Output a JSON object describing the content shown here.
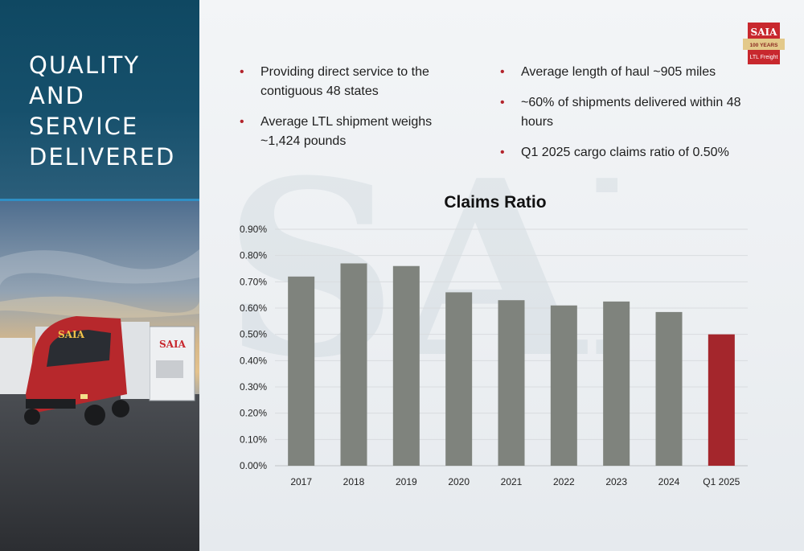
{
  "slide": {
    "title": "QUALITY\nAND\nSERVICE\nDELIVERED"
  },
  "logo": {
    "brand": "SAIA",
    "tagline_top": "100 YEARS",
    "tagline_bottom": "LTL Freight",
    "truck_brand": "SAIA",
    "brand_color": "#c8282e"
  },
  "bullets": {
    "left": [
      "Providing direct service to the contiguous 48 states",
      "Average LTL shipment weighs ~1,424 pounds"
    ],
    "right": [
      "Average length of haul ~905 miles",
      "~60% of shipments delivered within 48 hours",
      "Q1 2025 cargo claims ratio of 0.50%"
    ]
  },
  "colors": {
    "bar_default": "#7f837d",
    "bar_highlight": "#a4262c",
    "bullet": "#b3232b",
    "title_bg": "#134b66"
  },
  "chart_data": {
    "type": "bar",
    "title": "Claims Ratio",
    "categories": [
      "2017",
      "2018",
      "2019",
      "2020",
      "2021",
      "2022",
      "2023",
      "2024",
      "Q1 2025"
    ],
    "values": [
      0.72,
      0.77,
      0.76,
      0.66,
      0.63,
      0.61,
      0.625,
      0.585,
      0.5
    ],
    "highlight_index": 8,
    "ylim": [
      0,
      0.9
    ],
    "yticks": [
      0,
      0.1,
      0.2,
      0.3,
      0.4,
      0.5,
      0.6,
      0.7,
      0.8,
      0.9
    ],
    "ytick_labels": [
      "0.00%",
      "0.10%",
      "0.20%",
      "0.30%",
      "0.40%",
      "0.50%",
      "0.60%",
      "0.70%",
      "0.80%",
      "0.90%"
    ],
    "grid": true,
    "legend": "none"
  }
}
